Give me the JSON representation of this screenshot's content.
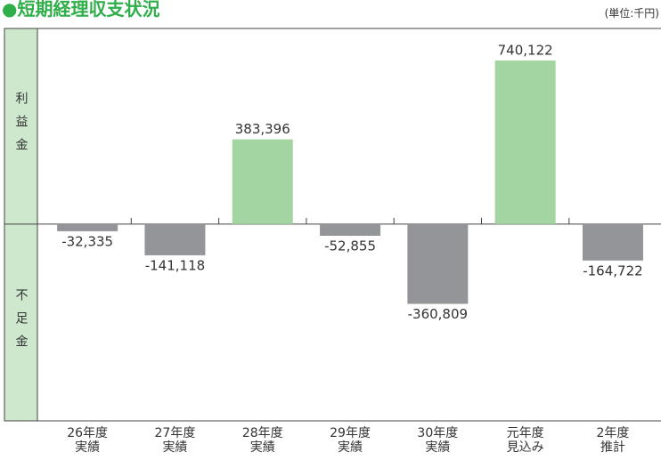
{
  "chart_data": {
    "type": "bar",
    "title": "●短期経理収支状況",
    "unit": "(単位:千円)",
    "side_labels": [
      "利益金",
      "不足金"
    ],
    "categories": [
      "26年度\n実績",
      "27年度\n実績",
      "28年度\n実績",
      "29年度\n実績",
      "30年度\n実績",
      "元年度\n見込み",
      "2年度\n推計"
    ],
    "values": [
      -32335,
      -141118,
      383396,
      -52855,
      -360809,
      740122,
      -164722
    ],
    "value_labels": [
      "-32,335",
      "-141,118",
      "383,396",
      "-52,855",
      "-360,809",
      "740,122",
      "-164,722"
    ],
    "positive_color": "#a3d5a3",
    "negative_color": "#939598",
    "ylim": [
      -890000,
      885000
    ]
  }
}
